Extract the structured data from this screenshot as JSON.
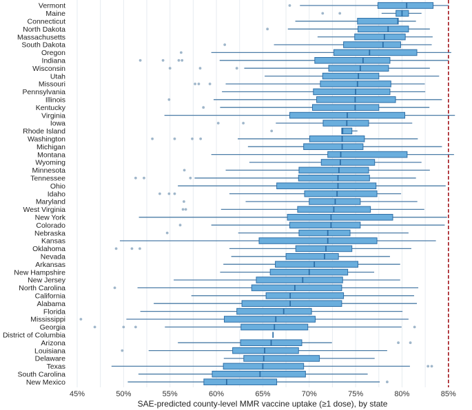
{
  "chart_data": {
    "type": "boxplot",
    "title": "",
    "xlabel": "SAE-predicted county-level MMR vaccine uptake (≥1 dose), by state",
    "ylabel": "",
    "xlim": [
      44.5,
      87
    ],
    "x_ticks": [
      "45%",
      "50%",
      "55%",
      "60%",
      "65%",
      "70%",
      "75%",
      "80%",
      "85%"
    ],
    "x_tick_values": [
      45,
      50,
      55,
      60,
      65,
      70,
      75,
      80,
      85
    ],
    "grid": "vertical minor every 2.5%",
    "reference_line": {
      "value": 85,
      "style": "dashed",
      "color": "#a3151b"
    },
    "colors": {
      "box_fill": "#6aaedd",
      "box_stroke": "#2e6ea6",
      "whisker": "#4a7ba6",
      "outlier": "#9fb6ca"
    },
    "stat_order": [
      "whisker_low",
      "q1",
      "median",
      "q3",
      "whisker_high"
    ],
    "states": [
      {
        "name": "Vermont",
        "stats": [
          69.0,
          77.4,
          80.5,
          83.35,
          85.0
        ],
        "outliers": [
          67.9
        ]
      },
      {
        "name": "Maine",
        "stats": [
          77.8,
          79.35,
          80.0,
          80.7,
          82.1
        ],
        "outliers": [
          71.45,
          73.3
        ]
      },
      {
        "name": "Connecticut",
        "stats": [
          68.5,
          75.2,
          79.55,
          79.6,
          81.5
        ],
        "outliers": []
      },
      {
        "name": "North Dakota",
        "stats": [
          67.7,
          75.25,
          78.5,
          80.7,
          83.0
        ],
        "outliers": [
          65.5
        ]
      },
      {
        "name": "Massachusetts",
        "stats": [
          70.9,
          74.9,
          78.1,
          80.35,
          83.3
        ],
        "outliers": []
      },
      {
        "name": "South Dakota",
        "stats": [
          66.2,
          73.7,
          77.95,
          79.85,
          83.2
        ],
        "outliers": [
          60.9
        ]
      },
      {
        "name": "Oregon",
        "stats": [
          59.45,
          72.65,
          76.5,
          81.6,
          85.3
        ],
        "outliers": [
          56.2
        ]
      },
      {
        "name": "Indiana",
        "stats": [
          60.35,
          70.6,
          75.8,
          78.7,
          85.0
        ],
        "outliers": [
          51.8,
          54.25,
          55.95,
          56.3
        ]
      },
      {
        "name": "Wisconsin",
        "stats": [
          63.0,
          72.1,
          75.5,
          78.55,
          83.0
        ],
        "outliers": [
          55.0,
          58.25,
          62.2
        ]
      },
      {
        "name": "Utah",
        "stats": [
          65.2,
          71.45,
          75.3,
          77.5,
          84.0
        ],
        "outliers": []
      },
      {
        "name": "Missouri",
        "stats": [
          61.0,
          71.2,
          75.2,
          78.8,
          82.45
        ],
        "outliers": [
          57.7,
          58.1,
          59.3
        ]
      },
      {
        "name": "Pennsylvania",
        "stats": [
          60.6,
          70.45,
          75.0,
          78.7,
          82.5
        ],
        "outliers": []
      },
      {
        "name": "Illinois",
        "stats": [
          59.7,
          70.8,
          74.95,
          79.3,
          84.3
        ],
        "outliers": [
          54.9
        ]
      },
      {
        "name": "Kentucky",
        "stats": [
          60.4,
          70.35,
          74.95,
          77.5,
          82.95
        ],
        "outliers": [
          58.6
        ]
      },
      {
        "name": "Virginia",
        "stats": [
          54.4,
          67.9,
          74.1,
          80.3,
          85.7
        ],
        "outliers": []
      },
      {
        "name": "Iowa",
        "stats": [
          66.4,
          71.5,
          74.05,
          76.4,
          81.1
        ],
        "outliers": [
          60.2,
          62.9
        ]
      },
      {
        "name": "Rhode Island",
        "stats": [
          73.5,
          73.5,
          73.6,
          74.6,
          75.2
        ],
        "outliers": [
          65.95
        ]
      },
      {
        "name": "Washington",
        "stats": [
          62.3,
          70.05,
          73.55,
          75.95,
          81.7
        ],
        "outliers": [
          53.1,
          55.5,
          57.4,
          58.3
        ]
      },
      {
        "name": "Michigan",
        "stats": [
          63.4,
          69.4,
          73.55,
          75.8,
          84.3
        ],
        "outliers": []
      },
      {
        "name": "Montana",
        "stats": [
          59.45,
          72.0,
          73.4,
          80.55,
          85.6
        ],
        "outliers": []
      },
      {
        "name": "Wyoming",
        "stats": [
          63.55,
          71.3,
          73.35,
          77.05,
          82.1
        ],
        "outliers": []
      },
      {
        "name": "Minnesota",
        "stats": [
          61.0,
          68.9,
          73.2,
          76.4,
          83.0
        ],
        "outliers": [
          56.55
        ]
      },
      {
        "name": "Tennessee",
        "stats": [
          57.65,
          68.85,
          73.1,
          76.5,
          81.5
        ],
        "outliers": [
          51.3,
          52.2,
          57.2
        ]
      },
      {
        "name": "Ohio",
        "stats": [
          55.85,
          66.5,
          73.1,
          77.2,
          84.7
        ],
        "outliers": []
      },
      {
        "name": "Idaho",
        "stats": [
          61.4,
          69.5,
          73.0,
          77.3,
          79.9
        ],
        "outliers": [
          53.9,
          54.9,
          55.5
        ]
      },
      {
        "name": "Maryland",
        "stats": [
          63.15,
          70.0,
          72.8,
          75.5,
          81.65
        ],
        "outliers": [
          56.5
        ]
      },
      {
        "name": "West Virginia",
        "stats": [
          60.5,
          68.75,
          72.65,
          76.6,
          82.4
        ],
        "outliers": [
          56.4,
          56.7
        ]
      },
      {
        "name": "New York",
        "stats": [
          51.65,
          67.65,
          72.35,
          79.0,
          84.85
        ],
        "outliers": []
      },
      {
        "name": "Colorado",
        "stats": [
          59.45,
          67.9,
          72.35,
          75.5,
          84.6
        ],
        "outliers": [
          56.1
        ]
      },
      {
        "name": "Nebraska",
        "stats": [
          62.35,
          68.9,
          72.0,
          74.4,
          80.7
        ],
        "outliers": [
          54.7
        ]
      },
      {
        "name": "Kansas",
        "stats": [
          49.6,
          64.6,
          72.0,
          77.3,
          83.65
        ],
        "outliers": []
      },
      {
        "name": "Oklahoma",
        "stats": [
          61.4,
          68.55,
          71.8,
          74.6,
          81.0
        ],
        "outliers": [
          49.2,
          50.9,
          51.75
        ]
      },
      {
        "name": "Nevada",
        "stats": [
          61.6,
          67.5,
          71.65,
          73.15,
          78.7
        ],
        "outliers": []
      },
      {
        "name": "Arkansas",
        "stats": [
          60.75,
          66.35,
          70.55,
          75.25,
          79.8
        ],
        "outliers": []
      },
      {
        "name": "New Hampshire",
        "stats": [
          60.4,
          65.8,
          70.0,
          74.15,
          77.0
        ],
        "outliers": []
      },
      {
        "name": "New Jersey",
        "stats": [
          55.4,
          64.3,
          69.3,
          73.6,
          79.8
        ],
        "outliers": []
      },
      {
        "name": "North Carolina",
        "stats": [
          51.5,
          63.8,
          68.45,
          73.5,
          81.75
        ],
        "outliers": [
          49.05
        ]
      },
      {
        "name": "California",
        "stats": [
          57.3,
          65.35,
          67.95,
          73.7,
          81.3
        ],
        "outliers": []
      },
      {
        "name": "Alabama",
        "stats": [
          53.25,
          62.75,
          67.95,
          73.5,
          81.6
        ],
        "outliers": []
      },
      {
        "name": "Florida",
        "stats": [
          51.8,
          62.2,
          67.25,
          70.25,
          80.05
        ],
        "outliers": []
      },
      {
        "name": "Mississippi",
        "stats": [
          50.3,
          60.85,
          66.4,
          70.65,
          80.7
        ],
        "outliers": [
          45.4
        ]
      },
      {
        "name": "Georgia",
        "stats": [
          54.45,
          62.65,
          66.25,
          69.85,
          79.95
        ],
        "outliers": [
          46.9,
          50.0,
          51.3,
          81.35
        ]
      },
      {
        "name": "District of Columbia",
        "stats": [
          66.1,
          66.1,
          66.1,
          66.1,
          66.1
        ],
        "outliers": []
      },
      {
        "name": "Arizona",
        "stats": [
          55.85,
          62.6,
          65.9,
          69.2,
          72.45
        ],
        "outliers": [
          79.6,
          80.9
        ]
      },
      {
        "name": "Louisiana",
        "stats": [
          52.7,
          61.75,
          65.2,
          68.85,
          78.4
        ],
        "outliers": [
          49.85
        ]
      },
      {
        "name": "Delaware",
        "stats": [
          60.8,
          62.95,
          65.1,
          71.1,
          77.05
        ],
        "outliers": []
      },
      {
        "name": "Texas",
        "stats": [
          48.7,
          60.75,
          65.0,
          69.4,
          80.85
        ],
        "outliers": [
          82.8,
          83.2
        ]
      },
      {
        "name": "South Carolina",
        "stats": [
          51.6,
          59.55,
          64.7,
          69.6,
          76.3
        ],
        "outliers": []
      },
      {
        "name": "New Mexico",
        "stats": [
          50.45,
          58.65,
          61.1,
          66.5,
          77.6
        ],
        "outliers": [
          78.4
        ]
      }
    ]
  }
}
